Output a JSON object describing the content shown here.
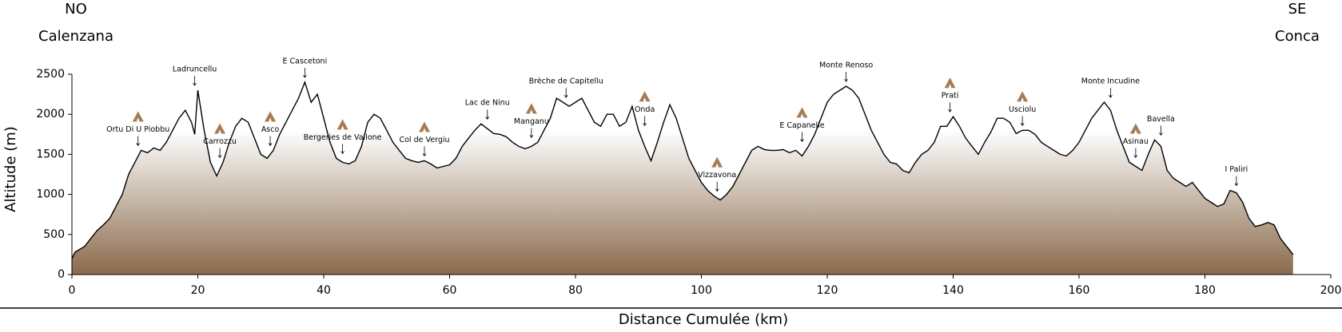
{
  "chart_data": {
    "type": "area",
    "xlabel": "Distance Cumulée (km)",
    "ylabel": "Altitude (m)",
    "corner_labels": {
      "left_top": "NO",
      "left_bottom": "Calenzana",
      "right_top": "SE",
      "right_bottom": "Conca"
    },
    "xlim": [
      0,
      200
    ],
    "ylim": [
      0,
      2500
    ],
    "xticks": [
      0,
      20,
      40,
      60,
      80,
      100,
      120,
      140,
      160,
      180,
      200
    ],
    "yticks": [
      0,
      500,
      1000,
      1500,
      2000,
      2500
    ],
    "color": "#000000",
    "fill_top": "#ffffff",
    "fill_bottom": "#8a6a4c",
    "x": [
      0,
      0.5,
      2,
      3,
      4,
      5,
      6,
      7,
      8,
      9,
      10,
      11,
      12,
      13,
      14,
      15,
      16,
      17,
      18,
      19,
      19.5,
      20,
      21,
      22,
      23,
      24,
      25,
      26,
      27,
      28,
      29,
      30,
      31,
      32,
      33,
      34,
      35,
      36,
      37,
      38,
      39,
      40,
      41,
      42,
      43,
      44,
      45,
      46,
      47,
      48,
      49,
      50,
      51,
      52,
      53,
      54,
      55,
      56,
      57,
      58,
      59,
      60,
      61,
      62,
      63,
      64,
      65,
      66,
      67,
      68,
      69,
      70,
      71,
      72,
      73,
      74,
      75,
      76,
      77,
      78,
      79,
      80,
      81,
      82,
      83,
      84,
      85,
      86,
      87,
      88,
      89,
      90,
      91,
      92,
      93,
      94,
      95,
      96,
      97,
      98,
      99,
      100,
      101,
      102,
      103,
      104,
      105,
      106,
      107,
      108,
      109,
      110,
      111,
      112,
      113,
      114,
      115,
      116,
      117,
      118,
      119,
      120,
      121,
      122,
      123,
      124,
      125,
      126,
      127,
      128,
      129,
      130,
      131,
      132,
      133,
      134,
      135,
      136,
      137,
      138,
      139,
      140,
      141,
      142,
      143,
      144,
      145,
      146,
      147,
      148,
      149,
      150,
      151,
      152,
      153,
      154,
      155,
      156,
      157,
      158,
      159,
      160,
      161,
      162,
      163,
      164,
      165,
      166,
      167,
      168,
      169,
      170,
      171,
      172,
      173,
      174,
      175,
      176,
      177,
      178,
      179,
      180,
      181,
      182,
      183,
      184,
      185,
      186,
      187,
      188,
      189,
      190,
      191,
      192,
      193,
      194
    ],
    "values": [
      200,
      280,
      350,
      450,
      550,
      620,
      700,
      850,
      1000,
      1250,
      1400,
      1550,
      1520,
      1580,
      1550,
      1650,
      1800,
      1950,
      2050,
      1900,
      1750,
      2300,
      1800,
      1400,
      1230,
      1400,
      1650,
      1850,
      1950,
      1900,
      1700,
      1500,
      1450,
      1550,
      1750,
      1900,
      2050,
      2200,
      2400,
      2150,
      2250,
      1950,
      1650,
      1450,
      1400,
      1380,
      1420,
      1600,
      1900,
      2000,
      1950,
      1800,
      1650,
      1550,
      1450,
      1420,
      1400,
      1420,
      1380,
      1330,
      1350,
      1370,
      1450,
      1600,
      1700,
      1800,
      1880,
      1820,
      1760,
      1750,
      1720,
      1650,
      1600,
      1570,
      1600,
      1650,
      1800,
      1950,
      2200,
      2150,
      2100,
      2150,
      2200,
      2050,
      1900,
      1850,
      2000,
      2000,
      1850,
      1900,
      2100,
      1800,
      1600,
      1420,
      1650,
      1900,
      2120,
      1950,
      1700,
      1450,
      1300,
      1150,
      1050,
      980,
      930,
      1000,
      1100,
      1250,
      1400,
      1550,
      1600,
      1560,
      1550,
      1550,
      1560,
      1520,
      1550,
      1480,
      1600,
      1750,
      1950,
      2150,
      2250,
      2300,
      2350,
      2300,
      2200,
      2000,
      1800,
      1650,
      1500,
      1400,
      1380,
      1300,
      1270,
      1400,
      1500,
      1550,
      1650,
      1850,
      1850,
      1970,
      1850,
      1700,
      1600,
      1500,
      1650,
      1780,
      1950,
      1950,
      1900,
      1760,
      1800,
      1800,
      1750,
      1650,
      1600,
      1550,
      1500,
      1480,
      1550,
      1650,
      1800,
      1950,
      2050,
      2150,
      2050,
      1800,
      1600,
      1400,
      1350,
      1300,
      1500,
      1680,
      1600,
      1300,
      1200,
      1150,
      1100,
      1150,
      1050,
      950,
      900,
      850,
      880,
      1050,
      1020,
      900,
      700,
      600,
      620,
      650,
      620,
      450,
      350,
      250
    ],
    "annotations": [
      {
        "text": "Ortu Di U Piobbu",
        "x": 10.5,
        "refuge": true
      },
      {
        "text": "Ladruncellu",
        "x": 19.5,
        "refuge": false
      },
      {
        "text": "Carrozzu",
        "x": 23.5,
        "refuge": true
      },
      {
        "text": "Asco",
        "x": 31.5,
        "refuge": true
      },
      {
        "text": "E Cascetoni",
        "x": 37,
        "refuge": false
      },
      {
        "text": "Bergeries de Vallone",
        "x": 43,
        "refuge": true
      },
      {
        "text": "Col de Vergiu",
        "x": 56,
        "refuge": true
      },
      {
        "text": "Lac de Ninu",
        "x": 66,
        "refuge": false
      },
      {
        "text": "Manganu",
        "x": 73,
        "refuge": true
      },
      {
        "text": "Brèche de Capitellu",
        "x": 78.5,
        "refuge": false
      },
      {
        "text": "Onda",
        "x": 91,
        "refuge": true
      },
      {
        "text": "Vizzavona",
        "x": 102.5,
        "refuge": true
      },
      {
        "text": "E Capanelle",
        "x": 116,
        "refuge": true
      },
      {
        "text": "Monte Renoso",
        "x": 123,
        "refuge": false
      },
      {
        "text": "Prati",
        "x": 139.5,
        "refuge": true
      },
      {
        "text": "Usciolu",
        "x": 151,
        "refuge": true
      },
      {
        "text": "Monte Incudine",
        "x": 165,
        "refuge": false
      },
      {
        "text": "Asinau",
        "x": 169,
        "refuge": true
      },
      {
        "text": "Bavella",
        "x": 173,
        "refuge": false
      },
      {
        "text": "I Paliri",
        "x": 185,
        "refuge": false
      }
    ]
  }
}
